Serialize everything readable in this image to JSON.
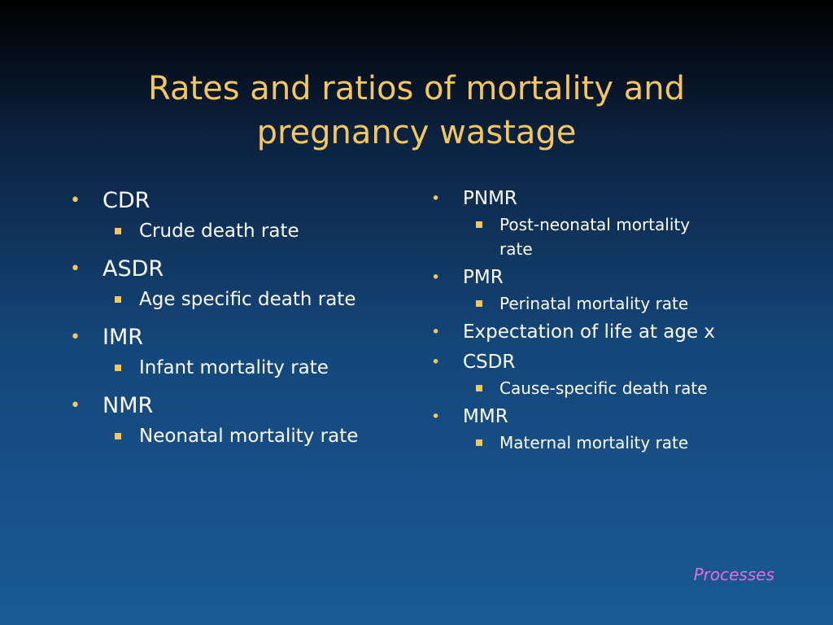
{
  "title": {
    "line1": "Rates and ratios of mortality and",
    "line2": "pregnancy wastage"
  },
  "left_column": [
    {
      "term": "CDR",
      "definition": "Crude death rate"
    },
    {
      "term": "ASDR",
      "definition": "Age specific death rate"
    },
    {
      "term": "IMR",
      "definition": "Infant mortality rate"
    },
    {
      "term": "NMR",
      "definition": "Neonatal mortality rate"
    }
  ],
  "right_column": {
    "pnmr": {
      "term": "PNMR",
      "definition_line1": "Post-neonatal mortality",
      "definition_line2": "rate"
    },
    "pmr": {
      "term": "PMR",
      "definition": "Perinatal mortality rate"
    },
    "expectation": {
      "term": "Expectation of life at age x"
    },
    "csdr": {
      "term": "CSDR",
      "definition": "Cause-specific death rate"
    },
    "mmr": {
      "term": "MMR",
      "definition": "Maternal mortality rate"
    }
  },
  "footer": {
    "label": "Processes"
  },
  "colors": {
    "title": "#f3c75e",
    "bullet": "#f3c75e",
    "text": "#ffffff",
    "footer": "#e070d8",
    "background_top": "#000000",
    "background_bottom": "#1a5a96"
  }
}
